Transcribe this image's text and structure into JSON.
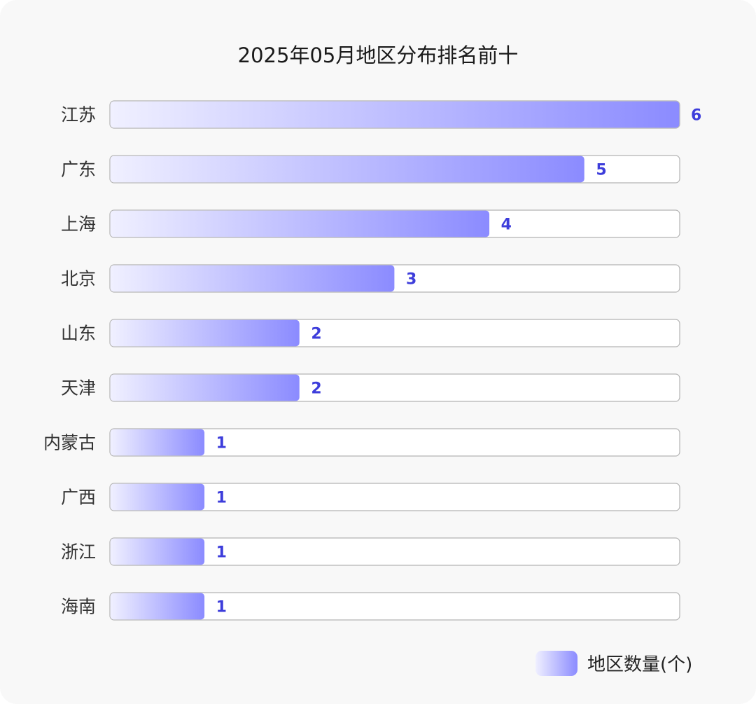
{
  "chart_data": {
    "type": "bar",
    "orientation": "horizontal",
    "title": "2025年05月地区分布排名前十",
    "categories": [
      "江苏",
      "广东",
      "上海",
      "北京",
      "山东",
      "天津",
      "内蒙古",
      "广西",
      "浙江",
      "海南"
    ],
    "series": [
      {
        "name": "地区数量(个)",
        "values": [
          6,
          5,
          4,
          3,
          2,
          2,
          1,
          1,
          1,
          1
        ]
      }
    ],
    "xlim": [
      0,
      6
    ],
    "grid": false,
    "legend_position": "bottom-right",
    "colors": {
      "bar_start": "#f0f0ff",
      "bar_end": "#8b8bff",
      "value_label": "#3d3ddb",
      "track_border": "#b3b3b3"
    }
  }
}
